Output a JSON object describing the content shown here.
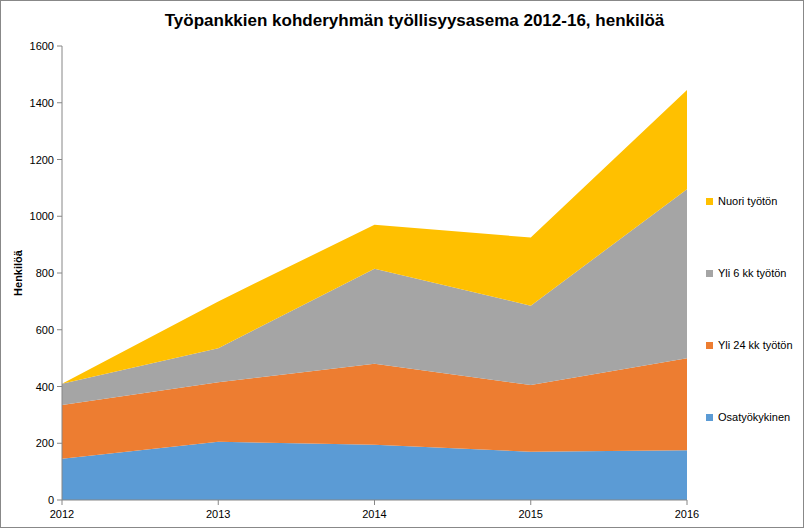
{
  "chart_data": {
    "type": "area",
    "title": "Työpankkien kohderyhmän työllisyysasema 2012-16, henkilöä",
    "y_label": "Henkilöä",
    "categories": [
      "2012",
      "2013",
      "2014",
      "2015",
      "2016"
    ],
    "series": [
      {
        "name": "Osatyökykinen",
        "color": "#5b9bd5",
        "values": [
          145,
          205,
          195,
          170,
          175
        ]
      },
      {
        "name": "Yli 24 kk työtön",
        "color": "#ed7d31",
        "values": [
          190,
          210,
          285,
          235,
          325
        ]
      },
      {
        "name": "Yli 6 kk työtön",
        "color": "#a5a5a5",
        "values": [
          75,
          120,
          335,
          280,
          595
        ]
      },
      {
        "name": "Nuori työtön",
        "color": "#ffc000",
        "values": [
          0,
          165,
          155,
          240,
          350
        ]
      }
    ],
    "stacked": true,
    "ylim": [
      0,
      1600
    ],
    "yticks": [
      0,
      200,
      400,
      600,
      800,
      1000,
      1200,
      1400,
      1600
    ],
    "grid": false,
    "legend": "right"
  }
}
